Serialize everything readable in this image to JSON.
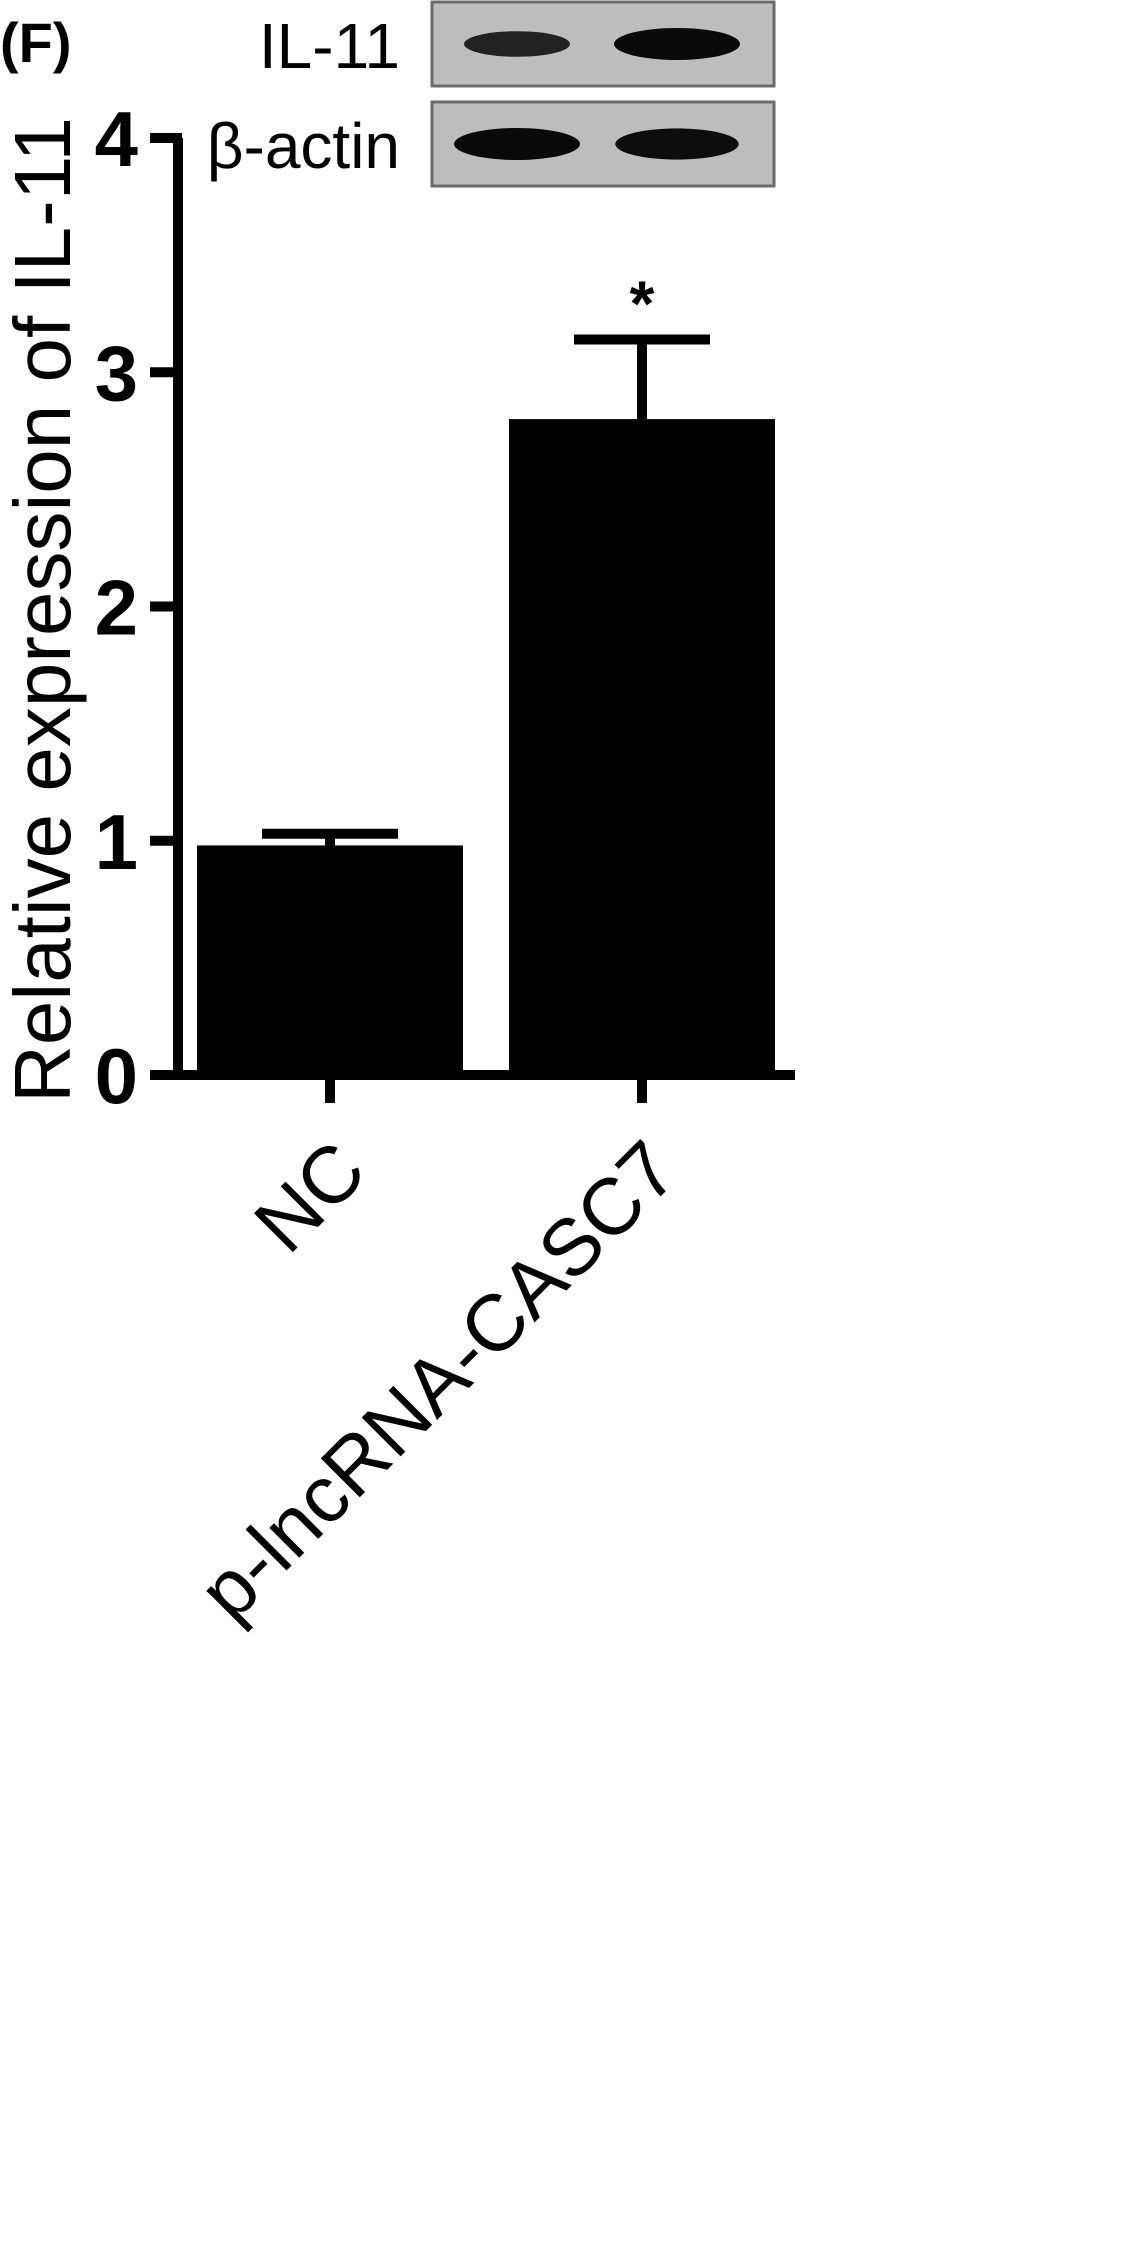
{
  "panel_label": "(F)",
  "blot": {
    "rows": [
      {
        "label": "IL-11",
        "band_intensity": [
          0.6,
          1.0
        ]
      },
      {
        "label": "β-actin",
        "band_intensity": [
          1.0,
          0.95
        ]
      }
    ]
  },
  "chart_data": {
    "type": "bar",
    "categories": [
      "NC",
      "p-lncRNA-CASC7"
    ],
    "values": [
      0.98,
      2.8
    ],
    "error": [
      0.05,
      0.34
    ],
    "significance": [
      "",
      "*"
    ],
    "ylabel": "Relative expression of IL-11",
    "xlabel": "",
    "ylim": [
      0,
      4
    ],
    "yticks": [
      0,
      1,
      2,
      3,
      4
    ],
    "bar_color": "#000000",
    "grid": false,
    "legend": false
  }
}
